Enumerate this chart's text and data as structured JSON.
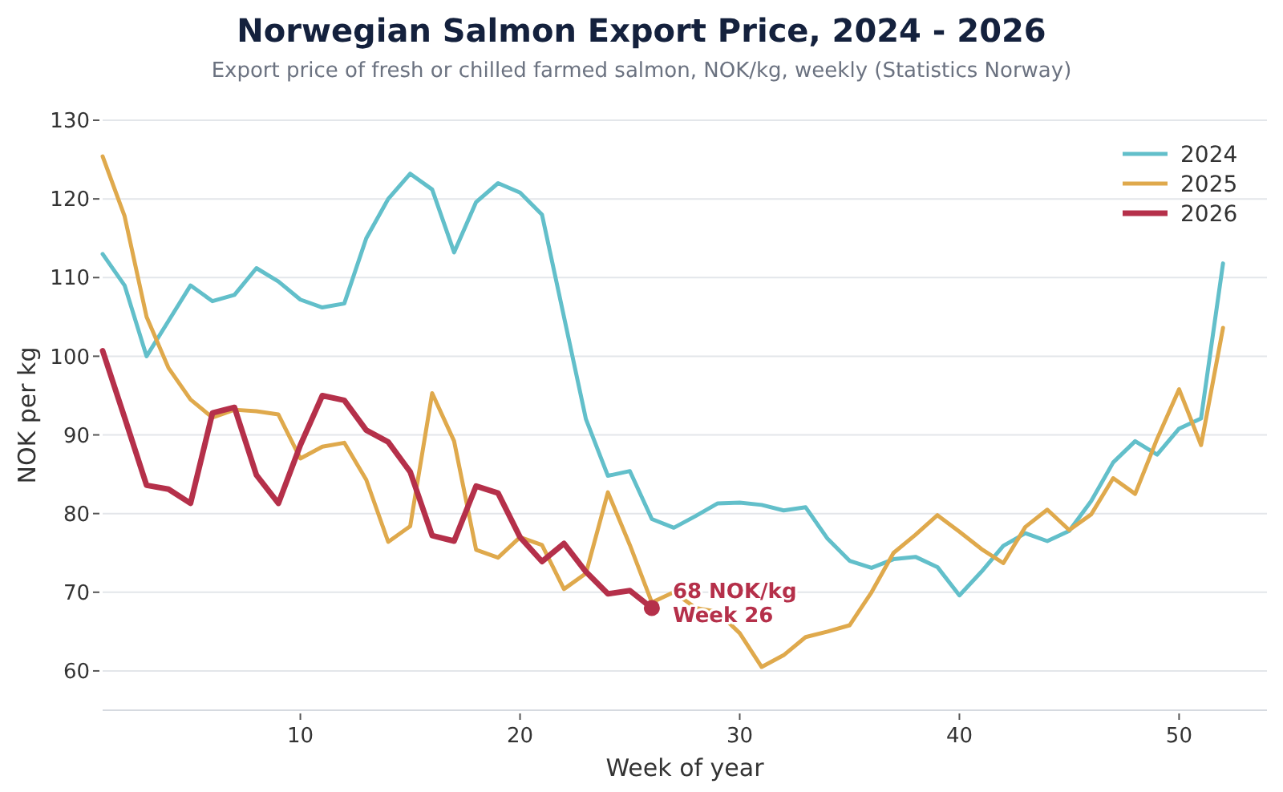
{
  "chart_data": {
    "type": "line",
    "title": "Norwegian Salmon Export Price, 2024 - 2026",
    "subtitle": "Export price of fresh or chilled farmed salmon, NOK/kg, weekly (Statistics Norway)",
    "xlabel": "Week of year",
    "ylabel": "NOK per kg",
    "x": [
      1,
      2,
      3,
      4,
      5,
      6,
      7,
      8,
      9,
      10,
      11,
      12,
      13,
      14,
      15,
      16,
      17,
      18,
      19,
      20,
      21,
      22,
      23,
      24,
      25,
      26,
      27,
      28,
      29,
      30,
      31,
      32,
      33,
      34,
      35,
      36,
      37,
      38,
      39,
      40,
      41,
      42,
      43,
      44,
      45,
      46,
      47,
      48,
      49,
      50,
      51,
      52
    ],
    "series": [
      {
        "name": "2024",
        "color": "#62bfca",
        "values": [
          113,
          109,
          100,
          104.5,
          109,
          107,
          107.8,
          111.2,
          109.5,
          107.2,
          106.2,
          106.7,
          115,
          120,
          123.2,
          121.2,
          113.2,
          119.6,
          122,
          120.8,
          118,
          105,
          92,
          84.8,
          85.4,
          79.3,
          78.2,
          79.7,
          81.3,
          81.4,
          81.1,
          80.4,
          80.8,
          76.8,
          74,
          73.1,
          74.2,
          74.5,
          73.2,
          69.6,
          72.6,
          75.9,
          77.5,
          76.5,
          77.8,
          81.6,
          86.5,
          89.2,
          87.5,
          90.8,
          92.1,
          111.8
        ]
      },
      {
        "name": "2025",
        "color": "#dfa94c",
        "values": [
          125.4,
          117.8,
          105,
          98.5,
          94.5,
          92.2,
          93.2,
          93,
          92.6,
          87,
          88.5,
          89,
          84.3,
          76.4,
          78.4,
          95.3,
          89.2,
          75.4,
          74.4,
          77,
          76,
          70.4,
          72.4,
          82.7,
          76,
          68.7,
          70,
          68,
          67.5,
          64.8,
          60.5,
          62,
          64.3,
          65,
          65.8,
          70,
          75,
          77.3,
          79.8,
          77.7,
          75.5,
          73.7,
          78.3,
          80.5,
          77.9,
          79.9,
          84.5,
          82.5,
          89.5,
          95.8,
          88.7,
          103.6
        ]
      },
      {
        "name": "2026",
        "color": "#b5304a",
        "x": [
          1,
          2,
          3,
          4,
          5,
          6,
          7,
          8,
          9,
          10,
          11,
          12,
          13,
          14,
          15,
          16,
          17,
          18,
          19,
          20,
          21,
          22,
          23,
          24,
          25,
          26
        ],
        "values": [
          100.7,
          92.2,
          83.6,
          83.1,
          81.3,
          92.8,
          93.5,
          84.9,
          81.3,
          88.7,
          95,
          94.4,
          90.6,
          89.1,
          85.3,
          77.2,
          76.5,
          83.5,
          82.6,
          77,
          73.9,
          76.2,
          72.6,
          69.8,
          70.2,
          68
        ]
      }
    ],
    "annotations": [
      {
        "text": "68 NOK/kg\nWeek 26",
        "x": 26,
        "y": 68
      }
    ],
    "xlim": [
      1,
      54
    ],
    "xticks": [
      10,
      20,
      30,
      40,
      50
    ],
    "ylim": [
      55,
      130
    ],
    "yticks": [
      60,
      70,
      80,
      90,
      100,
      110,
      120,
      130
    ],
    "grid": "y",
    "legend": "top right"
  }
}
